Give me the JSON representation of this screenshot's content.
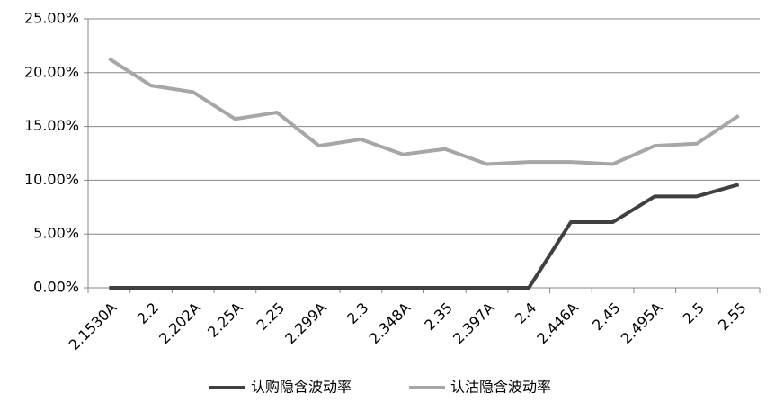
{
  "chart_data": {
    "type": "line",
    "categories": [
      "2.1530A",
      "2.2",
      "2.202A",
      "2.25A",
      "2.25",
      "2.299A",
      "2.3",
      "2.348A",
      "2.35",
      "2.397A",
      "2.4",
      "2.446A",
      "2.45",
      "2.495A",
      "2.5",
      "2.55"
    ],
    "series": [
      {
        "name": "认购隐含波动率",
        "color": "#404040",
        "values": [
          0,
          0,
          0,
          0,
          0,
          0,
          0,
          0,
          0,
          0,
          0,
          6.1,
          6.1,
          8.5,
          8.5,
          9.6
        ]
      },
      {
        "name": "认沽隐含波动率",
        "color": "#a6a6a6",
        "values": [
          21.3,
          18.8,
          18.2,
          15.7,
          16.3,
          13.2,
          13.8,
          12.4,
          12.9,
          11.5,
          11.7,
          11.7,
          11.5,
          13.2,
          13.4,
          16.0
        ]
      }
    ],
    "ylim": [
      0,
      25
    ],
    "yticks": [
      {
        "value": 0,
        "label": "0.00%"
      },
      {
        "value": 5,
        "label": "5.00%"
      },
      {
        "value": 10,
        "label": "10.00%"
      },
      {
        "value": 15,
        "label": "15.00%"
      },
      {
        "value": 20,
        "label": "20.00%"
      },
      {
        "value": 25,
        "label": "25.00%"
      }
    ],
    "grid": true,
    "legend": "bottom"
  }
}
